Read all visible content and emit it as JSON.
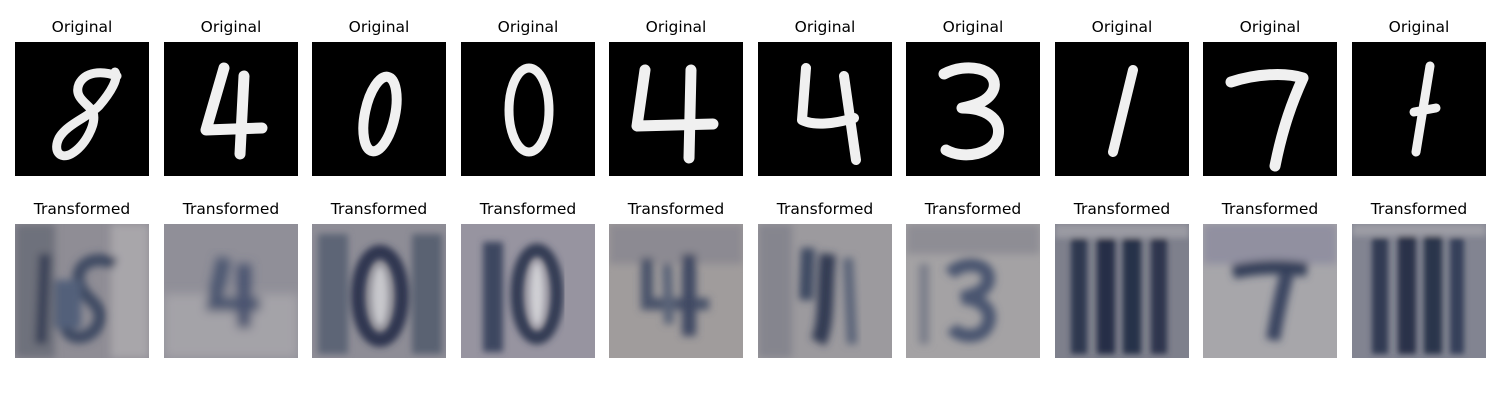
{
  "original_label": "Original",
  "transformed_label": "Transformed",
  "samples": [
    {
      "digit": "8"
    },
    {
      "digit": "4"
    },
    {
      "digit": "0"
    },
    {
      "digit": "0"
    },
    {
      "digit": "4"
    },
    {
      "digit": "4"
    },
    {
      "digit": "3"
    },
    {
      "digit": "1"
    },
    {
      "digit": "7"
    },
    {
      "digit": "1"
    }
  ],
  "colors": {
    "mnist_background": "#000000",
    "mnist_stroke": "#f2f2f2",
    "svhn_background": "#8e8c94",
    "svhn_stroke": "#3b4560"
  }
}
